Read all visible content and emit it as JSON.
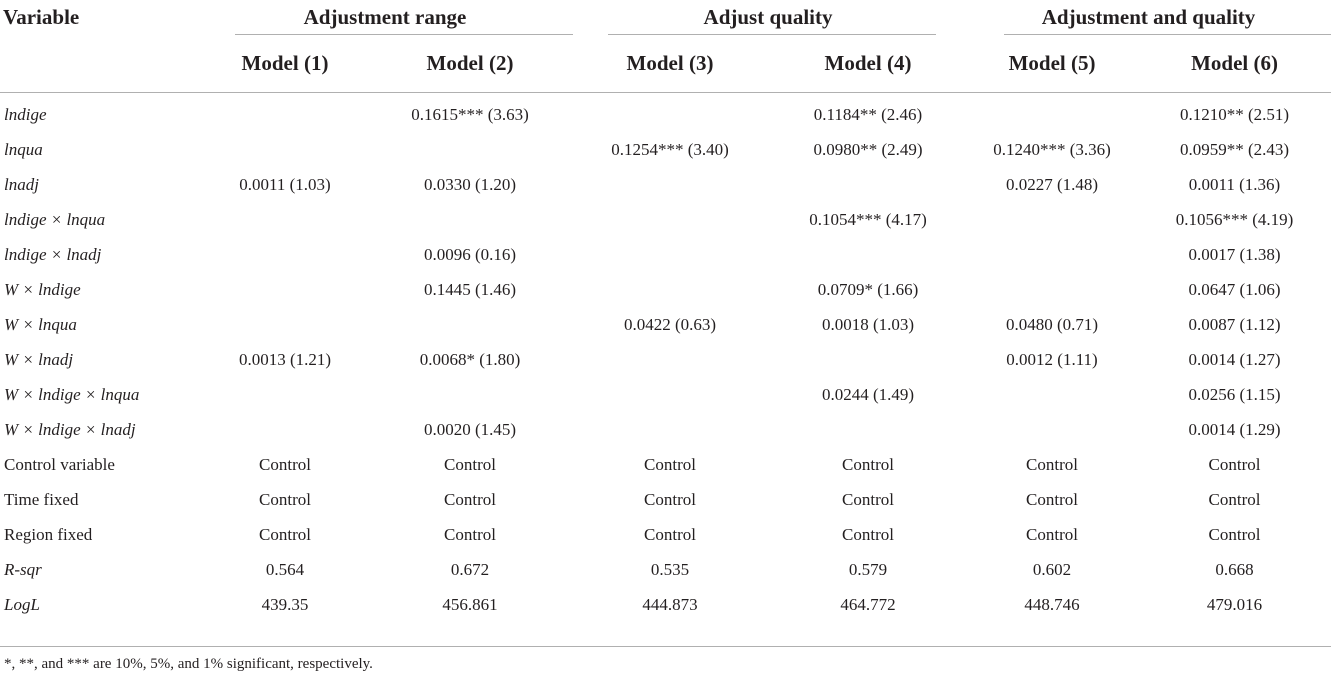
{
  "header": {
    "variable": "Variable",
    "groups": [
      "Adjustment range",
      "Adjust quality",
      "Adjustment and quality"
    ],
    "models": [
      "Model (1)",
      "Model (2)",
      "Model (3)",
      "Model (4)",
      "Model (5)",
      "Model (6)"
    ]
  },
  "rows": [
    {
      "label": "lndige",
      "italic": true,
      "cells": [
        "",
        "0.1615*** (3.63)",
        "",
        "0.1184** (2.46)",
        "",
        "0.1210** (2.51)"
      ]
    },
    {
      "label": "lnqua",
      "italic": true,
      "cells": [
        "",
        "",
        "0.1254*** (3.40)",
        "0.0980** (2.49)",
        "0.1240*** (3.36)",
        "0.0959** (2.43)"
      ]
    },
    {
      "label": "lnadj",
      "italic": true,
      "cells": [
        "0.0011 (1.03)",
        "0.0330 (1.20)",
        "",
        "",
        "0.0227 (1.48)",
        "0.0011 (1.36)"
      ]
    },
    {
      "label": "lndige × lnqua",
      "italic": true,
      "cells": [
        "",
        "",
        "",
        "0.1054*** (4.17)",
        "",
        "0.1056*** (4.19)"
      ]
    },
    {
      "label": "lndige × lnadj",
      "italic": true,
      "cells": [
        "",
        "0.0096 (0.16)",
        "",
        "",
        "",
        "0.0017 (1.38)"
      ]
    },
    {
      "label": "W × lndige",
      "italic": true,
      "cells": [
        "",
        "0.1445 (1.46)",
        "",
        "0.0709* (1.66)",
        "",
        "0.0647 (1.06)"
      ]
    },
    {
      "label": "W × lnqua",
      "italic": true,
      "cells": [
        "",
        "",
        "0.0422 (0.63)",
        "0.0018 (1.03)",
        "0.0480 (0.71)",
        "0.0087 (1.12)"
      ]
    },
    {
      "label": "W × lnadj",
      "italic": true,
      "cells": [
        "0.0013 (1.21)",
        "0.0068* (1.80)",
        "",
        "",
        "0.0012 (1.11)",
        "0.0014 (1.27)"
      ]
    },
    {
      "label": "W × lndige × lnqua",
      "italic": true,
      "cells": [
        "",
        "",
        "",
        "0.0244 (1.49)",
        "",
        "0.0256 (1.15)"
      ]
    },
    {
      "label": "W × lndige × lnadj",
      "italic": true,
      "cells": [
        "",
        "0.0020 (1.45)",
        "",
        "",
        "",
        "0.0014 (1.29)"
      ]
    },
    {
      "label": "Control variable",
      "italic": false,
      "cells": [
        "Control",
        "Control",
        "Control",
        "Control",
        "Control",
        "Control"
      ]
    },
    {
      "label": "Time fixed",
      "italic": false,
      "cells": [
        "Control",
        "Control",
        "Control",
        "Control",
        "Control",
        "Control"
      ]
    },
    {
      "label": "Region fixed",
      "italic": false,
      "cells": [
        "Control",
        "Control",
        "Control",
        "Control",
        "Control",
        "Control"
      ]
    },
    {
      "label": "R-sqr",
      "italic": true,
      "cells": [
        "0.564",
        "0.672",
        "0.535",
        "0.579",
        "0.602",
        "0.668"
      ]
    },
    {
      "label": "LogL",
      "italic": true,
      "cells": [
        "439.35",
        "456.861",
        "444.873",
        "464.772",
        "448.746",
        "479.016"
      ]
    }
  ],
  "note": "*, **, and *** are 10%, 5%, and 1% significant, respectively."
}
